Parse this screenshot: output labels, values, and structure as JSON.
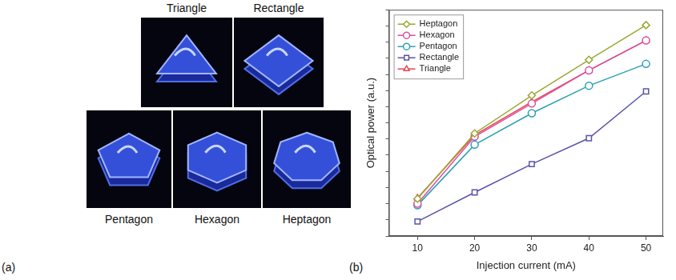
{
  "photos": {
    "panel": "(a)",
    "captions": [
      "Triangle",
      "Rectangle",
      "Pentagon",
      "Hexagon",
      "Heptagon"
    ]
  },
  "chart_data": {
    "panel": "(b)",
    "type": "line",
    "x_label": "Injection current (mA)",
    "y_label": "Optical power (a.u.)",
    "x": [
      10,
      20,
      30,
      40,
      50
    ],
    "series": [
      {
        "name": "Heptagon",
        "color": "#9aa832",
        "marker": "diamond",
        "line_style": "solid",
        "values": [
          2.3,
          6.35,
          8.7,
          10.9,
          13.05
        ]
      },
      {
        "name": "Hexagon",
        "color": "#d94fa0",
        "marker": "circle",
        "line_style": "solid",
        "values": [
          2.0,
          6.15,
          8.2,
          10.25,
          12.1
        ]
      },
      {
        "name": "Pentagon",
        "color": "#2aa1b3",
        "marker": "circle",
        "line_style": "solid",
        "values": [
          1.9,
          5.65,
          7.6,
          9.3,
          10.65
        ]
      },
      {
        "name": "Rectangle",
        "color": "#5b54a8",
        "marker": "square",
        "line_style": "solid",
        "values": [
          0.9,
          2.7,
          4.45,
          6.05,
          8.95
        ]
      },
      {
        "name": "Triangle",
        "color": "#e8454f",
        "marker": "triangle",
        "line_style": "solid",
        "values": [
          2.35,
          6.25,
          8.3,
          10.25,
          12.1
        ]
      }
    ],
    "xlim": [
      5,
      53
    ],
    "xticks": [
      10,
      20,
      30,
      40,
      50
    ],
    "ylim": [
      0,
      14
    ],
    "yticks": [
      0,
      1,
      2,
      3,
      4,
      5,
      6,
      7,
      8,
      9,
      10,
      11,
      12,
      13,
      14
    ],
    "grid": false,
    "legend": "upper left",
    "tick_labels": "x"
  }
}
